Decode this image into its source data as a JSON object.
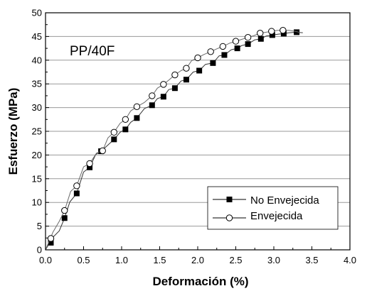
{
  "chart_data": {
    "type": "line",
    "annotation": "PP/40F",
    "xlabel": "Deformación (%)",
    "ylabel": "Esfuerzo (MPa)",
    "xlim": [
      0.0,
      4.0
    ],
    "ylim": [
      0,
      50
    ],
    "x_ticks": [
      "0.0",
      "0.5",
      "1.0",
      "1.5",
      "2.0",
      "2.5",
      "3.0",
      "3.5",
      "4.0"
    ],
    "y_ticks": [
      "0",
      "5",
      "10",
      "15",
      "20",
      "25",
      "30",
      "35",
      "40",
      "45",
      "50"
    ],
    "grid": "horizontal",
    "legend_position": "bottom-right",
    "series": [
      {
        "name": "No Envejecida",
        "marker": "filled-square",
        "color": "#000000",
        "x": [
          0.07,
          0.25,
          0.41,
          0.58,
          0.73,
          0.9,
          1.05,
          1.2,
          1.4,
          1.55,
          1.7,
          1.85,
          2.02,
          2.2,
          2.35,
          2.52,
          2.66,
          2.83,
          2.98,
          3.13,
          3.3
        ],
        "y": [
          1.5,
          6.7,
          11.9,
          17.4,
          20.8,
          23.3,
          25.4,
          27.8,
          30.5,
          32.3,
          34.1,
          35.9,
          37.8,
          39.4,
          41.1,
          42.5,
          43.4,
          44.5,
          45.3,
          45.6,
          45.9
        ],
        "line_x": [
          0.0,
          0.1,
          0.18,
          0.25,
          0.32,
          0.41,
          0.5,
          0.58,
          0.66,
          0.73,
          0.82,
          0.9,
          0.98,
          1.05,
          1.12,
          1.2,
          1.3,
          1.4,
          1.47,
          1.55,
          1.62,
          1.7,
          1.78,
          1.85,
          1.94,
          2.02,
          2.1,
          2.2,
          2.28,
          2.35,
          2.44,
          2.52,
          2.58,
          2.66,
          2.75,
          2.83,
          2.9,
          2.98,
          3.06,
          3.13,
          3.2,
          3.3,
          3.38
        ],
        "line_y": [
          0.0,
          2.7,
          4.0,
          6.7,
          10.1,
          11.9,
          16.4,
          17.4,
          20.1,
          20.8,
          22.1,
          23.3,
          24.8,
          25.4,
          26.9,
          27.8,
          29.8,
          30.5,
          31.9,
          32.3,
          33.8,
          34.1,
          35.6,
          35.9,
          37.5,
          37.8,
          39.1,
          39.4,
          40.9,
          41.1,
          42.2,
          42.5,
          43.1,
          43.4,
          44.3,
          44.5,
          45.1,
          45.3,
          45.5,
          45.6,
          45.8,
          45.9,
          45.8
        ]
      },
      {
        "name": "Envejecida",
        "marker": "open-circle",
        "color": "#000000",
        "x": [
          0.07,
          0.25,
          0.41,
          0.58,
          0.75,
          0.9,
          1.05,
          1.2,
          1.4,
          1.55,
          1.7,
          1.85,
          2.0,
          2.17,
          2.33,
          2.5,
          2.66,
          2.82,
          2.97,
          3.12
        ],
        "y": [
          2.4,
          8.3,
          13.5,
          18.2,
          20.9,
          24.8,
          27.5,
          30.2,
          32.5,
          34.9,
          36.9,
          38.3,
          40.5,
          41.8,
          42.9,
          44.0,
          44.8,
          45.7,
          46.1,
          46.3
        ],
        "line_x": [
          0.0,
          0.1,
          0.18,
          0.25,
          0.33,
          0.41,
          0.5,
          0.58,
          0.67,
          0.75,
          0.82,
          0.9,
          0.98,
          1.05,
          1.12,
          1.2,
          1.3,
          1.4,
          1.47,
          1.55,
          1.62,
          1.7,
          1.78,
          1.85,
          1.92,
          2.0,
          2.08,
          2.17,
          2.25,
          2.33,
          2.42,
          2.5,
          2.58,
          2.66,
          2.74,
          2.82,
          2.9,
          2.97,
          3.05,
          3.12,
          3.2,
          3.28,
          3.36
        ],
        "line_y": [
          0.0,
          3.8,
          6.0,
          8.3,
          12.3,
          13.5,
          17.5,
          18.2,
          20.4,
          20.9,
          23.6,
          24.8,
          26.7,
          27.5,
          29.3,
          30.2,
          31.1,
          32.5,
          34.1,
          34.9,
          35.8,
          36.9,
          37.8,
          38.3,
          39.9,
          40.5,
          41.2,
          41.8,
          42.4,
          42.9,
          43.6,
          44.0,
          44.4,
          44.8,
          45.2,
          45.7,
          45.9,
          46.1,
          46.3,
          46.3,
          46.3,
          46.1,
          45.8
        ]
      }
    ]
  }
}
